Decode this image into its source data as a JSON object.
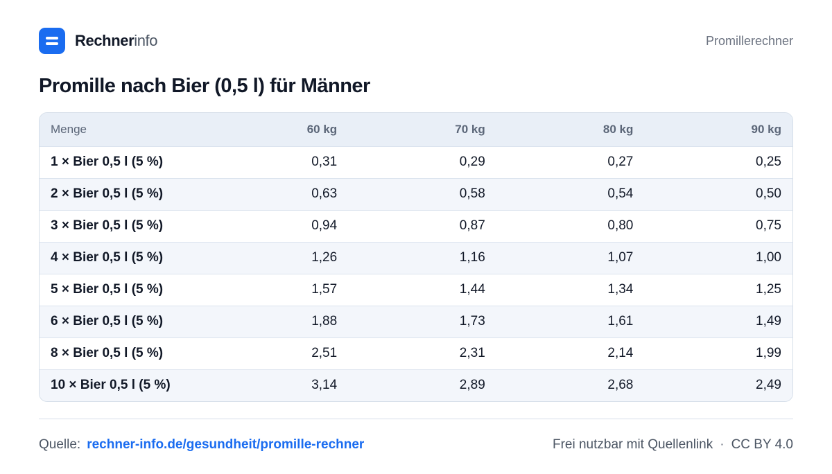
{
  "header": {
    "brand_strong": "Rechner",
    "brand_light": "info",
    "right_label": "Promillerechner"
  },
  "title": "Promille nach Bier (0,5 l) für Männer",
  "table": {
    "columns": [
      "Menge",
      "60 kg",
      "70 kg",
      "80 kg",
      "90 kg"
    ],
    "rows": [
      [
        "1 × Bier 0,5 l (5 %)",
        "0,31",
        "0,29",
        "0,27",
        "0,25"
      ],
      [
        "2 × Bier 0,5 l (5 %)",
        "0,63",
        "0,58",
        "0,54",
        "0,50"
      ],
      [
        "3 × Bier 0,5 l (5 %)",
        "0,94",
        "0,87",
        "0,80",
        "0,75"
      ],
      [
        "4 × Bier 0,5 l (5 %)",
        "1,26",
        "1,16",
        "1,07",
        "1,00"
      ],
      [
        "5 × Bier 0,5 l (5 %)",
        "1,57",
        "1,44",
        "1,34",
        "1,25"
      ],
      [
        "6 × Bier 0,5 l (5 %)",
        "1,88",
        "1,73",
        "1,61",
        "1,49"
      ],
      [
        "8 × Bier 0,5 l (5 %)",
        "2,51",
        "2,31",
        "2,14",
        "1,99"
      ],
      [
        "10 × Bier 0,5 l (5 %)",
        "3,14",
        "2,89",
        "2,68",
        "2,49"
      ]
    ]
  },
  "footer": {
    "source_label": "Quelle:",
    "source_link": "rechner-info.de/gesundheit/promille-rechner",
    "license_text": "Frei nutzbar mit Quellenlink",
    "separator": "·",
    "license": "CC BY 4.0"
  },
  "colors": {
    "accent": "#1a6cf0",
    "header_bg": "#e9eff7",
    "row_alt_bg": "#f3f6fb"
  },
  "icons": {
    "logo": "rechnerinfo-logo-icon"
  }
}
